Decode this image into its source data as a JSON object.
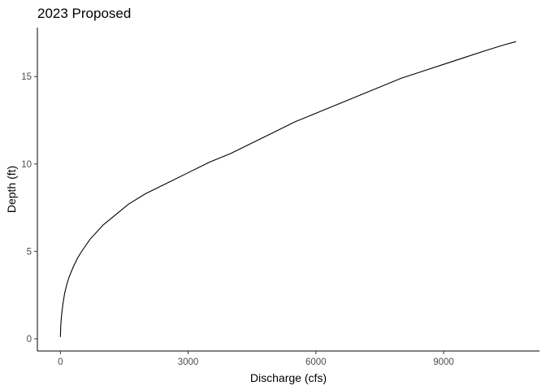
{
  "chart_data": {
    "type": "line",
    "title": "2023 Proposed",
    "xlabel": "Discharge (cfs)",
    "ylabel": "Depth (ft)",
    "xlim": [
      -540,
      11250
    ],
    "ylim": [
      -0.7,
      17.8
    ],
    "x_ticks": [
      0,
      3000,
      6000,
      9000
    ],
    "y_ticks": [
      0,
      5,
      10,
      15
    ],
    "x_tick_labels": [
      "0",
      "3000",
      "6000",
      "9000"
    ],
    "y_tick_labels": [
      "0",
      "5",
      "10",
      "15"
    ],
    "grid": false,
    "legend": "none",
    "line_color": "#000000",
    "series": [
      {
        "x": [
          0,
          10,
          30,
          60,
          100,
          150,
          200,
          300,
          400,
          500,
          700,
          1000,
          1300,
          1600,
          2000,
          2500,
          3000,
          3500,
          4000,
          4500,
          5000,
          5500,
          6000,
          6500,
          7000,
          7500,
          8000,
          8500,
          9000,
          9500,
          10000,
          10400,
          10700
        ],
        "y": [
          0.1,
          0.8,
          1.4,
          2.0,
          2.6,
          3.1,
          3.5,
          4.1,
          4.6,
          5.0,
          5.7,
          6.5,
          7.1,
          7.7,
          8.3,
          8.9,
          9.5,
          10.1,
          10.6,
          11.2,
          11.8,
          12.4,
          12.9,
          13.4,
          13.9,
          14.4,
          14.9,
          15.3,
          15.7,
          16.1,
          16.5,
          16.8,
          17.0
        ]
      }
    ]
  }
}
